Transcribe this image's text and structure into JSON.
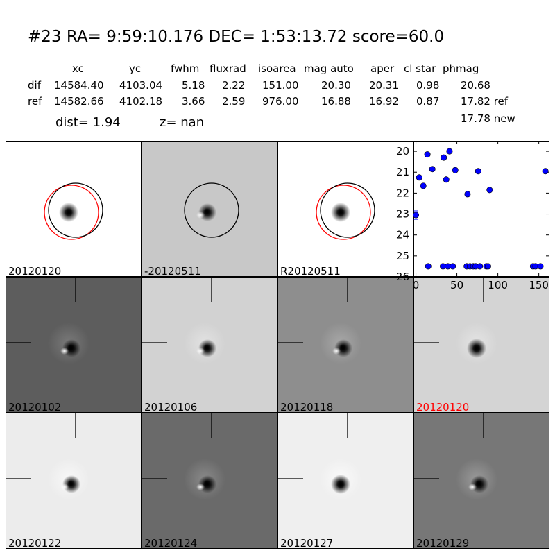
{
  "header": {
    "title": "#23   RA= 9:59:10.176 DEC= 1:53:13.72       score=60.0",
    "columns": [
      "xc",
      "yc",
      "fwhm",
      "fluxrad",
      "isoarea",
      "mag auto",
      "aper",
      "cl star",
      "phmag"
    ],
    "rows": [
      {
        "label": "dif",
        "values": [
          "14584.40",
          "4103.04",
          "5.18",
          "2.22",
          "151.00",
          "20.30",
          "20.31",
          "0.98",
          "20.68"
        ]
      },
      {
        "label": "ref",
        "values": [
          "14582.66",
          "4102.18",
          "3.66",
          "2.59",
          "976.00",
          "16.88",
          "16.92",
          "0.87",
          "17.82 ref"
        ]
      }
    ],
    "extra_phmag": "17.78 new",
    "dist": "dist=  1.94",
    "z": "z=   nan"
  },
  "panels": [
    {
      "label": "20120120",
      "label_color": "#000000",
      "bg": "#ffffff",
      "halo": "#ffffff",
      "style": "star",
      "circles": [
        "red",
        "black"
      ],
      "cross": false
    },
    {
      "label": "-20120511",
      "label_color": "#000000",
      "bg": "#c8c8c8",
      "halo": "#c8c8c8",
      "style": "dipole",
      "circles": [
        "black"
      ],
      "cross": false
    },
    {
      "label": "R20120511",
      "label_color": "#000000",
      "bg": "#ffffff",
      "halo": "#ffffff",
      "style": "star",
      "circles": [
        "red",
        "black"
      ],
      "cross": false
    },
    {
      "label": "20120102",
      "label_color": "#000000",
      "bg": "#5d5d5d",
      "halo": "#7a7a7a",
      "style": "dipole",
      "circles": [],
      "cross": true
    },
    {
      "label": "20120106",
      "label_color": "#000000",
      "bg": "#d2d2d2",
      "halo": "#e2e2e2",
      "style": "dipole",
      "circles": [],
      "cross": true
    },
    {
      "label": "20120118",
      "label_color": "#000000",
      "bg": "#8e8e8e",
      "halo": "#a8a8a8",
      "style": "dipole",
      "circles": [],
      "cross": true
    },
    {
      "label": "20120120",
      "label_color": "#ff0000",
      "bg": "#d4d4d4",
      "halo": "#e4e4e4",
      "style": "star",
      "circles": [],
      "cross": true
    },
    {
      "label": "20120122",
      "label_color": "#000000",
      "bg": "#ececec",
      "halo": "#f8f8f8",
      "style": "dipole",
      "circles": [],
      "cross": true
    },
    {
      "label": "20120124",
      "label_color": "#000000",
      "bg": "#6a6a6a",
      "halo": "#8a8a8a",
      "style": "dipole",
      "circles": [],
      "cross": true
    },
    {
      "label": "20120127",
      "label_color": "#000000",
      "bg": "#efefef",
      "halo": "#fafafa",
      "style": "star",
      "circles": [],
      "cross": true
    },
    {
      "label": "20120129",
      "label_color": "#000000",
      "bg": "#777777",
      "halo": "#9a9a9a",
      "style": "dipole",
      "circles": [],
      "cross": true
    }
  ],
  "chart_data": {
    "type": "scatter",
    "title": "",
    "xlabel": "",
    "ylabel": "",
    "xlim": [
      -3,
      163
    ],
    "ylim": [
      26,
      19.5
    ],
    "y_inverted": true,
    "xticks": [
      0,
      50,
      100,
      150
    ],
    "yticks": [
      20,
      21,
      22,
      23,
      24,
      25,
      26
    ],
    "grid": false,
    "marker_color": "#0000ff",
    "points": [
      {
        "x": 0,
        "y": 23.05,
        "err": 0.2
      },
      {
        "x": 4,
        "y": 21.25
      },
      {
        "x": 9,
        "y": 21.65
      },
      {
        "x": 14,
        "y": 20.15
      },
      {
        "x": 15,
        "y": 25.5
      },
      {
        "x": 20,
        "y": 20.85
      },
      {
        "x": 33,
        "y": 25.5
      },
      {
        "x": 34,
        "y": 20.3
      },
      {
        "x": 37,
        "y": 21.35
      },
      {
        "x": 39,
        "y": 25.5
      },
      {
        "x": 41,
        "y": 20.0
      },
      {
        "x": 45,
        "y": 25.5
      },
      {
        "x": 48,
        "y": 20.9
      },
      {
        "x": 62,
        "y": 25.5
      },
      {
        "x": 63,
        "y": 22.05,
        "err": 0.1
      },
      {
        "x": 66,
        "y": 25.5
      },
      {
        "x": 70,
        "y": 25.5
      },
      {
        "x": 73,
        "y": 25.5
      },
      {
        "x": 76,
        "y": 20.95
      },
      {
        "x": 78,
        "y": 25.5
      },
      {
        "x": 86,
        "y": 25.5
      },
      {
        "x": 88,
        "y": 25.5
      },
      {
        "x": 90,
        "y": 21.85
      },
      {
        "x": 143,
        "y": 25.5
      },
      {
        "x": 146,
        "y": 25.5
      },
      {
        "x": 152,
        "y": 25.5
      },
      {
        "x": 158,
        "y": 20.95
      }
    ]
  }
}
